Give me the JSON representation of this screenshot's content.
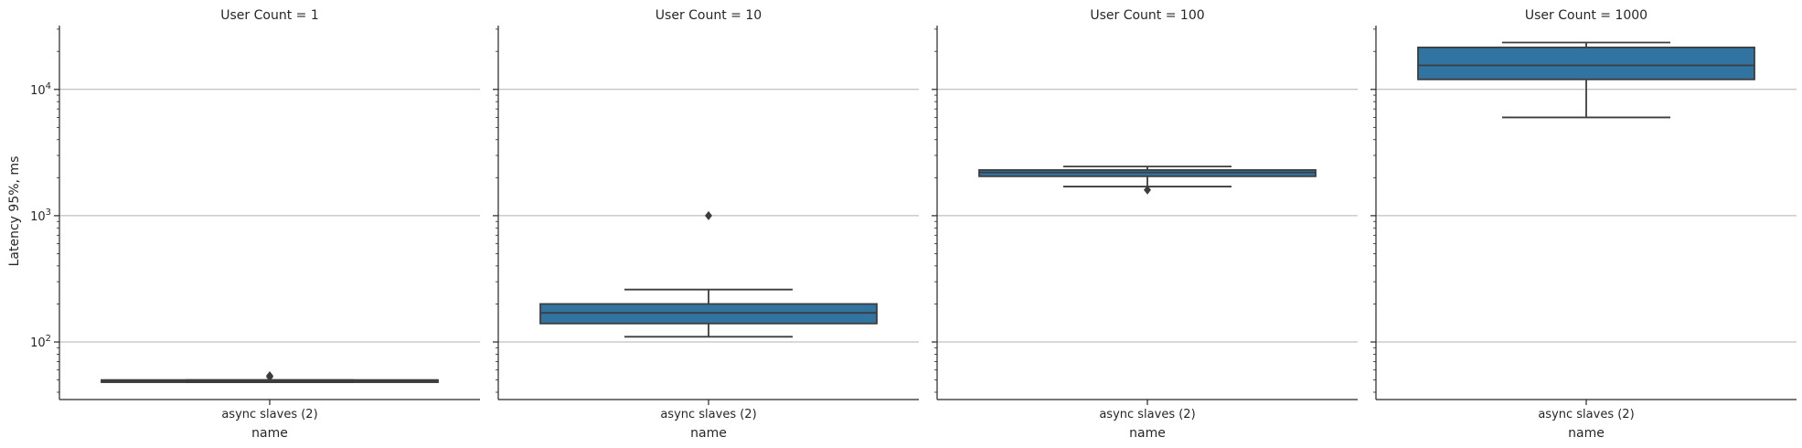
{
  "chart_data": {
    "type": "boxplot",
    "layout": "facet-columns",
    "facet_variable": "User Count",
    "ylabel": "Latency 95%, ms",
    "xlabel": "name",
    "yscale": "log",
    "ylim": [
      35,
      32000
    ],
    "yticks": [
      100,
      1000,
      10000
    ],
    "ytick_labels": [
      {
        "base": "10",
        "exp": "2"
      },
      {
        "base": "10",
        "exp": "3"
      },
      {
        "base": "10",
        "exp": "4"
      }
    ],
    "grid": "y-major",
    "box_color": "#3274a1",
    "line_color": "#3d3d3d",
    "facets": [
      {
        "title": "User Count = 1",
        "category": "async slaves (2)",
        "box": {
          "whisker_low": 48,
          "q1": 48,
          "median": 49,
          "q3": 50,
          "whisker_high": 50
        },
        "outliers": [
          53,
          54
        ]
      },
      {
        "title": "User Count = 10",
        "category": "async slaves (2)",
        "box": {
          "whisker_low": 110,
          "q1": 140,
          "median": 170,
          "q3": 200,
          "whisker_high": 260
        },
        "outliers": [
          1000
        ]
      },
      {
        "title": "User Count = 100",
        "category": "async slaves (2)",
        "box": {
          "whisker_low": 1700,
          "q1": 2050,
          "median": 2200,
          "q3": 2300,
          "whisker_high": 2450
        },
        "outliers": [
          1600
        ]
      },
      {
        "title": "User Count = 1000",
        "category": "async slaves (2)",
        "box": {
          "whisker_low": 6000,
          "q1": 12000,
          "median": 15500,
          "q3": 21500,
          "whisker_high": 23500
        },
        "outliers": []
      }
    ]
  }
}
